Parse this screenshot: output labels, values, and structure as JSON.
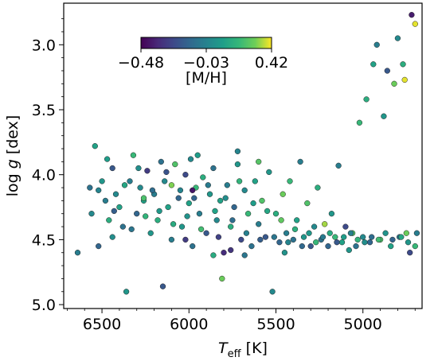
{
  "chart_data": {
    "type": "scatter",
    "xlabel_main": "T",
    "xlabel_sub": "eff",
    "xlabel_unit": " [K]",
    "ylabel_pre": "log ",
    "ylabel_var": "g",
    "ylabel_unit": " [dex]",
    "xlim": [
      6720,
      4660
    ],
    "ylim": [
      5.03,
      2.68
    ],
    "x_ticks": [
      6500,
      6000,
      5500,
      5000
    ],
    "x_tick_labels": [
      "6500",
      "6000",
      "5500",
      "5000"
    ],
    "y_ticks": [
      3.0,
      3.5,
      4.0,
      4.5,
      5.0
    ],
    "y_tick_labels": [
      "3.0",
      "3.5",
      "4.0",
      "4.5",
      "5.0"
    ],
    "colorbar": {
      "label": "[M/H]",
      "range": [
        -0.48,
        0.42
      ],
      "ticks": [
        -0.48,
        -0.03,
        0.42
      ],
      "tick_labels": [
        "−0.48",
        "−0.03",
        "0.42"
      ],
      "colormap": "viridis",
      "placement": "top-left inset"
    },
    "points": [
      [
        6640,
        4.6,
        -0.05
      ],
      [
        6570,
        4.1,
        -0.1
      ],
      [
        6560,
        4.3,
        0.0
      ],
      [
        6540,
        3.78,
        0.1
      ],
      [
        6520,
        4.55,
        -0.15
      ],
      [
        6500,
        4.05,
        0.05
      ],
      [
        6480,
        4.2,
        -0.05
      ],
      [
        6460,
        4.35,
        0.15
      ],
      [
        6440,
        3.95,
        -0.2
      ],
      [
        6420,
        4.15,
        0.0
      ],
      [
        6400,
        4.25,
        0.1
      ],
      [
        6380,
        4.4,
        -0.1
      ],
      [
        6360,
        4.9,
        0.05
      ],
      [
        6340,
        4.05,
        -0.05
      ],
      [
        6320,
        3.85,
        0.2
      ],
      [
        6300,
        4.3,
        -0.15
      ],
      [
        6280,
        4.1,
        0.0
      ],
      [
        6260,
        4.2,
        0.1
      ],
      [
        6240,
        3.97,
        -0.3
      ],
      [
        6220,
        4.45,
        0.05
      ],
      [
        6200,
        4.15,
        -0.05
      ],
      [
        6180,
        4.35,
        0.15
      ],
      [
        6160,
        3.9,
        -0.1
      ],
      [
        6150,
        4.86,
        -0.2
      ],
      [
        6140,
        4.05,
        0.0
      ],
      [
        6120,
        4.25,
        0.1
      ],
      [
        6100,
        4.5,
        -0.05
      ],
      [
        6080,
        3.92,
        0.25
      ],
      [
        6060,
        4.18,
        -0.15
      ],
      [
        6040,
        4.4,
        0.05
      ],
      [
        6020,
        4.0,
        -0.25
      ],
      [
        6000,
        4.22,
        0.1
      ],
      [
        5990,
        3.88,
        0.0
      ],
      [
        5980,
        4.55,
        -0.1
      ],
      [
        5960,
        4.1,
        0.2
      ],
      [
        5940,
        4.3,
        -0.05
      ],
      [
        5920,
        4.02,
        0.15
      ],
      [
        5900,
        4.45,
        -0.2
      ],
      [
        5880,
        4.15,
        0.05
      ],
      [
        5860,
        3.95,
        -0.1
      ],
      [
        5840,
        4.35,
        0.0
      ],
      [
        5820,
        4.2,
        0.1
      ],
      [
        5810,
        4.8,
        0.3
      ],
      [
        5800,
        4.6,
        -0.35
      ],
      [
        5780,
        4.08,
        -0.05
      ],
      [
        5760,
        4.4,
        0.15
      ],
      [
        5740,
        4.25,
        -0.15
      ],
      [
        5720,
        3.92,
        0.05
      ],
      [
        5700,
        4.5,
        -0.25
      ],
      [
        5680,
        4.12,
        0.0
      ],
      [
        5660,
        4.3,
        0.2
      ],
      [
        5640,
        4.55,
        -0.1
      ],
      [
        5620,
        4.05,
        0.1
      ],
      [
        5600,
        4.38,
        -0.05
      ],
      [
        5580,
        4.2,
        0.25
      ],
      [
        5560,
        4.48,
        -0.2
      ],
      [
        5540,
        3.98,
        0.05
      ],
      [
        5520,
        4.9,
        0.0
      ],
      [
        5500,
        4.3,
        0.15
      ],
      [
        5480,
        4.52,
        -0.15
      ],
      [
        5460,
        4.15,
        0.3
      ],
      [
        5440,
        4.45,
        -0.05
      ],
      [
        5420,
        4.05,
        0.2
      ],
      [
        5400,
        4.5,
        -0.1
      ],
      [
        5380,
        4.35,
        0.1
      ],
      [
        5360,
        3.9,
        -0.05
      ],
      [
        5340,
        4.48,
        0.05
      ],
      [
        5320,
        4.22,
        0.25
      ],
      [
        5300,
        4.55,
        -0.2
      ],
      [
        5280,
        4.4,
        0.0
      ],
      [
        5260,
        4.1,
        0.15
      ],
      [
        5240,
        4.5,
        -0.1
      ],
      [
        5220,
        4.38,
        0.35
      ],
      [
        5200,
        4.55,
        -0.15
      ],
      [
        5180,
        4.3,
        0.05
      ],
      [
        5160,
        4.48,
        0.2
      ],
      [
        5140,
        3.93,
        -0.05
      ],
      [
        5120,
        4.52,
        0.1
      ],
      [
        5100,
        4.4,
        -0.25
      ],
      [
        5080,
        4.58,
        0.05
      ],
      [
        5060,
        4.45,
        0.25
      ],
      [
        5040,
        4.55,
        -0.1
      ],
      [
        5020,
        3.6,
        0.2
      ],
      [
        5000,
        4.48,
        0.0
      ],
      [
        4980,
        3.42,
        0.15
      ],
      [
        4960,
        4.52,
        -0.15
      ],
      [
        4940,
        3.15,
        0.1
      ],
      [
        4920,
        3.0,
        -0.05
      ],
      [
        4900,
        4.5,
        0.25
      ],
      [
        4880,
        3.55,
        0.05
      ],
      [
        4860,
        3.2,
        -0.2
      ],
      [
        4840,
        4.55,
        0.1
      ],
      [
        4820,
        3.3,
        0.3
      ],
      [
        4800,
        2.95,
        0.0
      ],
      [
        4790,
        4.48,
        -0.1
      ],
      [
        4770,
        3.15,
        0.15
      ],
      [
        4760,
        3.27,
        0.4
      ],
      [
        4740,
        4.52,
        0.05
      ],
      [
        4730,
        4.6,
        -0.25
      ],
      [
        4720,
        2.77,
        -0.4
      ],
      [
        4700,
        2.84,
        0.4
      ],
      [
        4700,
        4.55,
        0.2
      ],
      [
        4690,
        4.45,
        -0.05
      ],
      [
        6520,
        4.12,
        -0.02
      ],
      [
        6470,
        3.88,
        0.08
      ],
      [
        6430,
        4.28,
        -0.18
      ],
      [
        6370,
        4.08,
        0.12
      ],
      [
        6330,
        4.42,
        -0.08
      ],
      [
        6290,
        3.95,
        0.02
      ],
      [
        6250,
        4.32,
        0.18
      ],
      [
        6210,
        4.12,
        -0.12
      ],
      [
        6170,
        4.28,
        0.06
      ],
      [
        6130,
        3.98,
        -0.22
      ],
      [
        6090,
        4.38,
        0.14
      ],
      [
        6050,
        4.12,
        -0.02
      ],
      [
        6010,
        4.32,
        0.04
      ],
      [
        5970,
        4.18,
        -0.16
      ],
      [
        5930,
        4.42,
        0.22
      ],
      [
        5890,
        4.08,
        -0.06
      ],
      [
        5850,
        4.28,
        0.1
      ],
      [
        5830,
        4.48,
        -0.28
      ],
      [
        5790,
        4.18,
        0.02
      ],
      [
        5750,
        4.35,
        -0.12
      ],
      [
        5710,
        4.05,
        0.18
      ],
      [
        5670,
        4.45,
        -0.04
      ],
      [
        5630,
        4.22,
        0.08
      ],
      [
        5590,
        4.5,
        -0.18
      ],
      [
        5550,
        4.28,
        0.12
      ],
      [
        5510,
        4.48,
        -0.08
      ],
      [
        5470,
        4.35,
        0.28
      ],
      [
        5430,
        4.52,
        -0.02
      ],
      [
        5390,
        4.42,
        0.16
      ],
      [
        5350,
        4.55,
        -0.14
      ],
      [
        5310,
        4.45,
        0.06
      ],
      [
        5270,
        4.52,
        0.2
      ],
      [
        5230,
        4.48,
        -0.06
      ],
      [
        5190,
        4.45,
        0.14
      ],
      [
        5150,
        4.52,
        -0.2
      ],
      [
        5110,
        4.48,
        0.08
      ],
      [
        5070,
        4.45,
        -0.04
      ],
      [
        5030,
        4.5,
        0.18
      ],
      [
        4990,
        4.52,
        0.02
      ],
      [
        4950,
        4.48,
        -0.12
      ],
      [
        4910,
        4.5,
        0.22
      ],
      [
        4870,
        4.45,
        0.04
      ],
      [
        4830,
        4.5,
        -0.16
      ],
      [
        4780,
        4.48,
        0.12
      ],
      [
        4750,
        4.45,
        0.3
      ],
      [
        6440,
        4.48,
        0.02
      ],
      [
        6100,
        4.08,
        0.32
      ],
      [
        5950,
        3.85,
        0.08
      ],
      [
        5720,
        3.82,
        -0.02
      ],
      [
        5600,
        3.9,
        0.26
      ],
      [
        5860,
        4.62,
        0.14
      ],
      [
        6020,
        4.5,
        -0.3
      ],
      [
        5680,
        4.62,
        -0.08
      ],
      [
        5450,
        4.6,
        0.04
      ],
      [
        5980,
        4.12,
        -0.42
      ],
      [
        6260,
        4.18,
        0.24
      ],
      [
        5760,
        4.58,
        -0.32
      ]
    ]
  }
}
